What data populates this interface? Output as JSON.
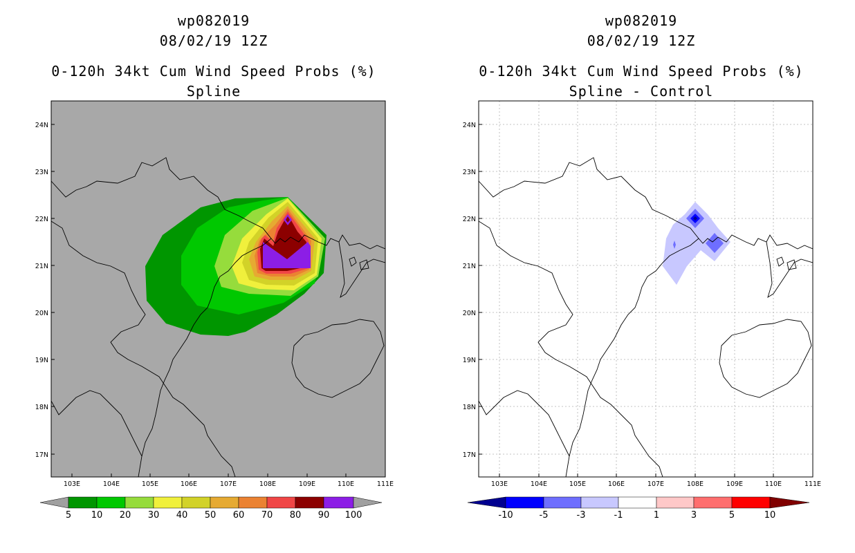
{
  "left_panel": {
    "storm_id": "wp082019",
    "datetime": "08/02/19 12Z",
    "product": "0-120h 34kt Cum Wind Speed Probs (%)",
    "subtitle": "Spline",
    "lat_labels": [
      "24N",
      "23N",
      "22N",
      "21N",
      "20N",
      "19N",
      "18N",
      "17N"
    ],
    "lon_labels": [
      "103E",
      "104E",
      "105E",
      "106E",
      "107E",
      "108E",
      "109E",
      "110E",
      "111E"
    ],
    "colorbar": {
      "labels": [
        "5",
        "10",
        "20",
        "30",
        "40",
        "50",
        "60",
        "70",
        "80",
        "90",
        "100"
      ],
      "colors": [
        "#009600",
        "#00c800",
        "#96dc3c",
        "#f0f03c",
        "#d2d228",
        "#e6aa32",
        "#eb8232",
        "#f04646",
        "#8c0000",
        "#8c1ee6"
      ],
      "under_color": "#a0a0a0",
      "over_color": "#a0a0a0"
    },
    "background_color": "#a8a8a8"
  },
  "right_panel": {
    "storm_id": "wp082019",
    "datetime": "08/02/19 12Z",
    "product": "0-120h 34kt Cum Wind Speed Probs (%)",
    "subtitle": "Spline - Control",
    "lat_labels": [
      "24N",
      "23N",
      "22N",
      "21N",
      "20N",
      "19N",
      "18N",
      "17N"
    ],
    "lon_labels": [
      "103E",
      "104E",
      "105E",
      "106E",
      "107E",
      "108E",
      "109E",
      "110E",
      "111E"
    ],
    "colorbar": {
      "labels": [
        "-10",
        "-5",
        "-3",
        "-1",
        "1",
        "3",
        "5",
        "10"
      ],
      "colors": [
        "#000090",
        "#0000ff",
        "#6e6eff",
        "#c8c8ff",
        "#ffffff",
        "#ffc8c8",
        "#ff6e6e",
        "#ff0000"
      ],
      "under_color": "#000080",
      "over_color": "#800000"
    },
    "background_color": "#ffffff"
  }
}
